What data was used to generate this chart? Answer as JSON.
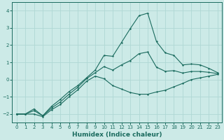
{
  "xlabel": "Humidex (Indice chaleur)",
  "ylabel": "",
  "bg_color": "#cceae7",
  "grid_color": "#afd8d4",
  "line_color": "#1a6b5e",
  "xlim": [
    -0.5,
    23.5
  ],
  "ylim": [
    -2.5,
    4.5
  ],
  "xticks": [
    0,
    1,
    2,
    3,
    4,
    5,
    6,
    7,
    8,
    9,
    10,
    11,
    12,
    13,
    14,
    15,
    16,
    17,
    18,
    19,
    20,
    21,
    22,
    23
  ],
  "yticks": [
    -2,
    -1,
    0,
    1,
    2,
    3,
    4
  ],
  "series_max_x": [
    0,
    1,
    2,
    3,
    4,
    5,
    6,
    7,
    8,
    9,
    10,
    11,
    12,
    13,
    14,
    15,
    16,
    17,
    18,
    19,
    20,
    21,
    22,
    23
  ],
  "series_max_y": [
    -2.0,
    -2.0,
    -1.7,
    -2.1,
    -1.55,
    -1.15,
    -0.7,
    -0.35,
    0.1,
    0.55,
    1.4,
    1.35,
    2.15,
    2.95,
    3.7,
    3.85,
    2.2,
    1.55,
    1.4,
    0.85,
    0.9,
    0.85,
    0.65,
    0.4
  ],
  "series_mid_x": [
    0,
    1,
    2,
    3,
    4,
    5,
    6,
    7,
    8,
    9,
    10,
    11,
    12,
    13,
    14,
    15,
    16,
    17,
    18,
    19,
    20,
    21,
    22,
    23
  ],
  "series_mid_y": [
    -2.0,
    -2.0,
    -1.8,
    -2.1,
    -1.65,
    -1.3,
    -0.85,
    -0.45,
    0.05,
    0.4,
    0.75,
    0.55,
    0.85,
    1.1,
    1.5,
    1.6,
    0.72,
    0.48,
    0.52,
    0.38,
    0.47,
    0.47,
    0.42,
    0.35
  ],
  "series_min_x": [
    0,
    1,
    2,
    3,
    4,
    5,
    6,
    7,
    8,
    9,
    10,
    11,
    12,
    13,
    14,
    15,
    16,
    17,
    18,
    19,
    20,
    21,
    22,
    23
  ],
  "series_min_y": [
    -2.0,
    -2.0,
    -2.0,
    -2.15,
    -1.75,
    -1.45,
    -1.0,
    -0.6,
    -0.1,
    0.2,
    0.05,
    -0.35,
    -0.55,
    -0.75,
    -0.85,
    -0.85,
    -0.72,
    -0.62,
    -0.42,
    -0.22,
    0.0,
    0.1,
    0.2,
    0.3
  ]
}
